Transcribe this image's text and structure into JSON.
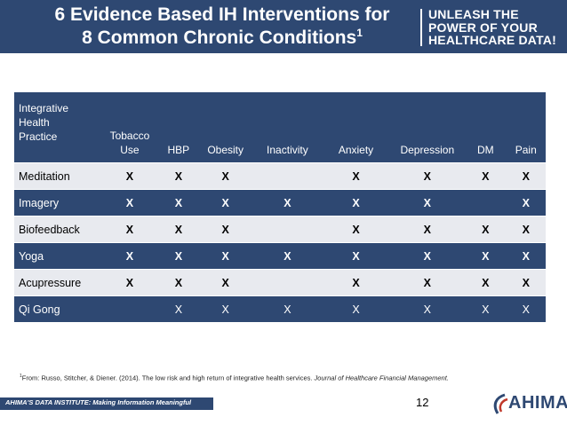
{
  "slide": {
    "title_line1": "6 Evidence Based IH Interventions for",
    "title_line2": "8 Common Chronic Conditions",
    "title_sup": "1",
    "tagline_line1": "UNLEASH THE",
    "tagline_line2": "POWER OF YOUR",
    "tagline_line3": "HEALTHCARE DATA!",
    "page_number": "12",
    "footer_text": "AHIMA'S DATA INSTITUTE: Making Information Meaningful",
    "logo_text": "AHIMA"
  },
  "table": {
    "headers": {
      "practice_line1": "Integrative",
      "practice_line2": "Health",
      "practice_line3": "Practice",
      "tobacco_line1": "Tobacco",
      "tobacco_line2": "Use",
      "hbp": "HBP",
      "obesity": "Obesity",
      "inactivity": "Inactivity",
      "anxiety": "Anxiety",
      "depression": "Depression",
      "dm": "DM",
      "pain": "Pain"
    },
    "rows": [
      {
        "name": "Meditation",
        "cells": [
          "X",
          "X",
          "X",
          "",
          "X",
          "X",
          "X",
          "X"
        ]
      },
      {
        "name": "Imagery",
        "cells": [
          "X",
          "X",
          "X",
          "X",
          "X",
          "X",
          "",
          "X"
        ]
      },
      {
        "name": "Biofeedback",
        "cells": [
          "X",
          "X",
          "X",
          "",
          "X",
          "X",
          "X",
          "X"
        ]
      },
      {
        "name": "Yoga",
        "cells": [
          "X",
          "X",
          "X",
          "X",
          "X",
          "X",
          "X",
          "X"
        ]
      },
      {
        "name": "Acupressure",
        "cells": [
          "X",
          "X",
          "X",
          "",
          "X",
          "X",
          "X",
          "X"
        ]
      },
      {
        "name": "Qi Gong",
        "cells": [
          "",
          "X",
          "X",
          "X",
          "X",
          "X",
          "X",
          "X"
        ]
      }
    ]
  },
  "footnote": {
    "sup": "1",
    "text": "From:  Russo, Stitcher, & Diener. (2014). The low risk and high return of integrative health services. ",
    "journal": "Journal of Healthcare Financial Management."
  },
  "colors": {
    "brand_navy": "#2e4872",
    "row_light": "#e8eaef"
  }
}
